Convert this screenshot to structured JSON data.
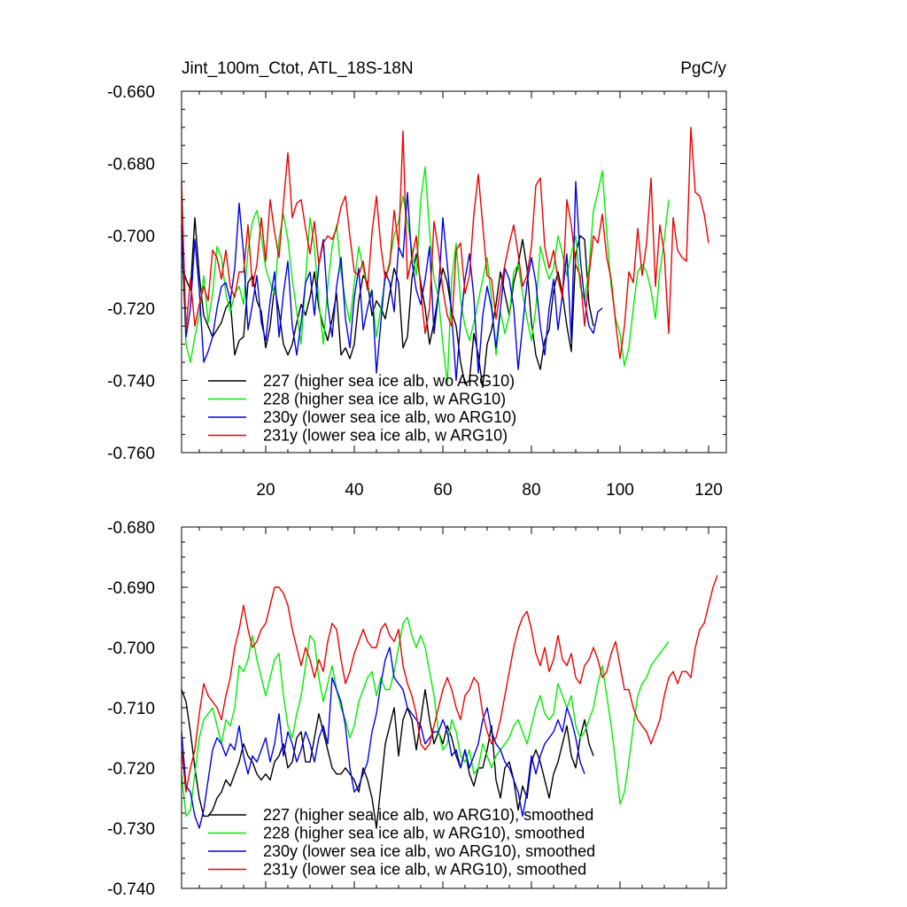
{
  "title": "Jint_100m_Ctot, ATL_18S-18N",
  "units": "PgC/y",
  "colors": {
    "227": "#000000",
    "228": "#00ee00",
    "230y": "#0000ee",
    "231y": "#ee0000"
  },
  "chart_data": [
    {
      "type": "line",
      "panel": "top",
      "xlim": [
        1,
        124
      ],
      "ylim": [
        -0.76,
        -0.66
      ],
      "x_ticks": [
        20,
        40,
        60,
        80,
        100,
        120
      ],
      "x_tick_labels": [
        "20",
        "40",
        "60",
        "80",
        "100",
        "120"
      ],
      "y_ticks": [
        -0.76,
        -0.74,
        -0.72,
        -0.7,
        -0.68,
        -0.66
      ],
      "y_tick_labels": [
        "-0.760",
        "-0.740",
        "-0.720",
        "-0.700",
        "-0.680",
        "-0.660"
      ],
      "legend_position": "bottom-left",
      "series": [
        {
          "name": "227 (higher sea ice alb, wo ARG10)",
          "key": "227",
          "x_start": 1,
          "values": [
            -0.708,
            -0.712,
            -0.715,
            -0.695,
            -0.711,
            -0.722,
            -0.725,
            -0.728,
            -0.726,
            -0.724,
            -0.72,
            -0.718,
            -0.733,
            -0.729,
            -0.728,
            -0.713,
            -0.711,
            -0.718,
            -0.721,
            -0.731,
            -0.725,
            -0.714,
            -0.721,
            -0.73,
            -0.733,
            -0.73,
            -0.724,
            -0.719,
            -0.722,
            -0.717,
            -0.71,
            -0.72,
            -0.725,
            -0.729,
            -0.723,
            -0.716,
            -0.733,
            -0.731,
            -0.734,
            -0.73,
            -0.718,
            -0.711,
            -0.713,
            -0.722,
            -0.718,
            -0.72,
            -0.723,
            -0.716,
            -0.709,
            -0.713,
            -0.731,
            -0.728,
            -0.712,
            -0.705,
            -0.713,
            -0.72,
            -0.73,
            -0.724,
            -0.716,
            -0.709,
            -0.713,
            -0.721,
            -0.725,
            -0.735,
            -0.741,
            -0.74,
            -0.727,
            -0.733,
            -0.742,
            -0.73,
            -0.726,
            -0.719,
            -0.71,
            -0.716,
            -0.722,
            -0.713,
            -0.708,
            -0.701,
            -0.709,
            -0.724,
            -0.733,
            -0.737,
            -0.729,
            -0.726,
            -0.715,
            -0.71,
            -0.716,
            -0.725,
            -0.732,
            -0.705,
            -0.7,
            -0.701,
            -0.719,
            -0.725
          ]
        },
        {
          "name": "228 (higher sea ice alb, w ARG10)",
          "key": "228",
          "x_start": 1,
          "values": [
            -0.7,
            -0.73,
            -0.735,
            -0.728,
            -0.722,
            -0.711,
            -0.724,
            -0.716,
            -0.703,
            -0.706,
            -0.716,
            -0.721,
            -0.716,
            -0.714,
            -0.719,
            -0.704,
            -0.696,
            -0.693,
            -0.7,
            -0.709,
            -0.713,
            -0.716,
            -0.701,
            -0.694,
            -0.701,
            -0.712,
            -0.721,
            -0.73,
            -0.712,
            -0.695,
            -0.703,
            -0.718,
            -0.73,
            -0.714,
            -0.703,
            -0.697,
            -0.71,
            -0.718,
            -0.724,
            -0.713,
            -0.703,
            -0.709,
            -0.715,
            -0.716,
            -0.728,
            -0.72,
            -0.712,
            -0.707,
            -0.7,
            -0.696,
            -0.689,
            -0.696,
            -0.704,
            -0.711,
            -0.69,
            -0.681,
            -0.699,
            -0.712,
            -0.717,
            -0.73,
            -0.741,
            -0.712,
            -0.702,
            -0.718,
            -0.725,
            -0.729,
            -0.724,
            -0.718,
            -0.712,
            -0.706,
            -0.718,
            -0.733,
            -0.721,
            -0.727,
            -0.722,
            -0.71,
            -0.708,
            -0.716,
            -0.723,
            -0.729,
            -0.72,
            -0.703,
            -0.708,
            -0.712,
            -0.709,
            -0.7,
            -0.705,
            -0.711,
            -0.705,
            -0.7,
            -0.714,
            -0.718,
            -0.709,
            -0.693,
            -0.688,
            -0.682,
            -0.699,
            -0.714,
            -0.723,
            -0.727,
            -0.736,
            -0.731,
            -0.72,
            -0.71,
            -0.708,
            -0.71,
            -0.715,
            -0.723,
            -0.71,
            -0.701,
            -0.69
          ]
        },
        {
          "name": "230y (lower sea ice alb, wo ARG10)",
          "key": "230y",
          "x_start": 1,
          "values": [
            -0.697,
            -0.728,
            -0.72,
            -0.701,
            -0.715,
            -0.735,
            -0.732,
            -0.728,
            -0.72,
            -0.714,
            -0.713,
            -0.718,
            -0.709,
            -0.691,
            -0.705,
            -0.726,
            -0.719,
            -0.711,
            -0.724,
            -0.729,
            -0.718,
            -0.71,
            -0.728,
            -0.716,
            -0.707,
            -0.725,
            -0.733,
            -0.724,
            -0.713,
            -0.71,
            -0.722,
            -0.708,
            -0.701,
            -0.719,
            -0.728,
            -0.714,
            -0.706,
            -0.723,
            -0.731,
            -0.717,
            -0.709,
            -0.726,
            -0.72,
            -0.715,
            -0.738,
            -0.724,
            -0.71,
            -0.713,
            -0.721,
            -0.703,
            -0.706,
            -0.688,
            -0.707,
            -0.715,
            -0.719,
            -0.712,
            -0.703,
            -0.727,
            -0.716,
            -0.695,
            -0.708,
            -0.722,
            -0.74,
            -0.724,
            -0.712,
            -0.705,
            -0.717,
            -0.738,
            -0.722,
            -0.714,
            -0.72,
            -0.731,
            -0.72,
            -0.709,
            -0.712,
            -0.72,
            -0.737,
            -0.725,
            -0.713,
            -0.706,
            -0.713,
            -0.725,
            -0.733,
            -0.72,
            -0.712,
            -0.726,
            -0.716,
            -0.705,
            -0.729,
            -0.685,
            -0.706,
            -0.718,
            -0.725,
            -0.727,
            -0.721,
            -0.72
          ]
        },
        {
          "name": "231y (lower sea ice alb, w ARG10)",
          "key": "231y",
          "x_start": 1,
          "values": [
            -0.685,
            -0.726,
            -0.712,
            -0.725,
            -0.719,
            -0.714,
            -0.718,
            -0.704,
            -0.706,
            -0.712,
            -0.704,
            -0.714,
            -0.717,
            -0.71,
            -0.71,
            -0.697,
            -0.714,
            -0.708,
            -0.695,
            -0.707,
            -0.69,
            -0.699,
            -0.706,
            -0.691,
            -0.677,
            -0.695,
            -0.691,
            -0.69,
            -0.698,
            -0.705,
            -0.696,
            -0.708,
            -0.702,
            -0.7,
            -0.701,
            -0.698,
            -0.692,
            -0.689,
            -0.7,
            -0.71,
            -0.711,
            -0.707,
            -0.715,
            -0.699,
            -0.689,
            -0.703,
            -0.712,
            -0.708,
            -0.693,
            -0.703,
            -0.671,
            -0.712,
            -0.706,
            -0.7,
            -0.715,
            -0.727,
            -0.72,
            -0.696,
            -0.704,
            -0.715,
            -0.722,
            -0.725,
            -0.704,
            -0.702,
            -0.716,
            -0.711,
            -0.694,
            -0.683,
            -0.697,
            -0.711,
            -0.712,
            -0.723,
            -0.715,
            -0.708,
            -0.702,
            -0.697,
            -0.705,
            -0.714,
            -0.711,
            -0.703,
            -0.686,
            -0.684,
            -0.703,
            -0.709,
            -0.704,
            -0.712,
            -0.717,
            -0.69,
            -0.697,
            -0.708,
            -0.711,
            -0.725,
            -0.711,
            -0.7,
            -0.702,
            -0.694,
            -0.706,
            -0.712,
            -0.724,
            -0.734,
            -0.725,
            -0.71,
            -0.713,
            -0.698,
            -0.711,
            -0.702,
            -0.684,
            -0.714,
            -0.697,
            -0.705,
            -0.727,
            -0.695,
            -0.704,
            -0.706,
            -0.707,
            -0.67,
            -0.688,
            -0.689,
            -0.694,
            -0.702
          ]
        }
      ]
    },
    {
      "type": "line",
      "panel": "bottom",
      "xlim": [
        1,
        124
      ],
      "ylim": [
        -0.74,
        -0.68
      ],
      "x_ticks": [
        20,
        40,
        60,
        80,
        100,
        120
      ],
      "y_ticks": [
        -0.74,
        -0.73,
        -0.72,
        -0.71,
        -0.7,
        -0.69,
        -0.68
      ],
      "y_tick_labels": [
        "-0.740",
        "-0.730",
        "-0.720",
        "-0.710",
        "-0.700",
        "-0.690",
        "-0.680"
      ],
      "legend_position": "bottom-left",
      "series": [
        {
          "name": "227 (higher sea ice alb, wo ARG10), smoothed",
          "key": "227",
          "x_start": 1,
          "values": [
            -0.707,
            -0.709,
            -0.714,
            -0.72,
            -0.725,
            -0.728,
            -0.728,
            -0.727,
            -0.725,
            -0.724,
            -0.722,
            -0.723,
            -0.721,
            -0.719,
            -0.716,
            -0.718,
            -0.719,
            -0.721,
            -0.722,
            -0.721,
            -0.722,
            -0.719,
            -0.718,
            -0.716,
            -0.72,
            -0.719,
            -0.715,
            -0.714,
            -0.719,
            -0.719,
            -0.715,
            -0.711,
            -0.714,
            -0.717,
            -0.72,
            -0.721,
            -0.721,
            -0.72,
            -0.721,
            -0.722,
            -0.724,
            -0.72,
            -0.722,
            -0.725,
            -0.73,
            -0.723,
            -0.716,
            -0.713,
            -0.71,
            -0.718,
            -0.712,
            -0.71,
            -0.712,
            -0.717,
            -0.712,
            -0.707,
            -0.712,
            -0.716,
            -0.714,
            -0.716,
            -0.713,
            -0.715,
            -0.718,
            -0.72,
            -0.717,
            -0.721,
            -0.723,
            -0.72,
            -0.72,
            -0.717,
            -0.713,
            -0.722,
            -0.725,
            -0.72,
            -0.719,
            -0.722,
            -0.727,
            -0.723,
            -0.725,
            -0.719,
            -0.717,
            -0.719,
            -0.722,
            -0.725,
            -0.721,
            -0.719,
            -0.716,
            -0.713,
            -0.718,
            -0.72,
            -0.715,
            -0.712,
            -0.716,
            -0.718
          ]
        },
        {
          "name": "228 (higher sea ice alb, w ARG10), smoothed",
          "key": "228",
          "x_start": 1,
          "values": [
            -0.721,
            -0.728,
            -0.727,
            -0.721,
            -0.715,
            -0.712,
            -0.711,
            -0.71,
            -0.713,
            -0.716,
            -0.712,
            -0.713,
            -0.71,
            -0.703,
            -0.704,
            -0.702,
            -0.698,
            -0.702,
            -0.705,
            -0.708,
            -0.705,
            -0.702,
            -0.701,
            -0.708,
            -0.713,
            -0.715,
            -0.711,
            -0.708,
            -0.703,
            -0.698,
            -0.699,
            -0.705,
            -0.709,
            -0.706,
            -0.703,
            -0.707,
            -0.71,
            -0.712,
            -0.715,
            -0.713,
            -0.709,
            -0.707,
            -0.705,
            -0.704,
            -0.708,
            -0.705,
            -0.707,
            -0.707,
            -0.704,
            -0.7,
            -0.696,
            -0.695,
            -0.698,
            -0.7,
            -0.698,
            -0.7,
            -0.704,
            -0.708,
            -0.714,
            -0.717,
            -0.716,
            -0.712,
            -0.714,
            -0.718,
            -0.719,
            -0.717,
            -0.721,
            -0.72,
            -0.716,
            -0.718,
            -0.72,
            -0.718,
            -0.717,
            -0.716,
            -0.715,
            -0.713,
            -0.712,
            -0.714,
            -0.716,
            -0.713,
            -0.71,
            -0.708,
            -0.711,
            -0.712,
            -0.711,
            -0.706,
            -0.708,
            -0.71,
            -0.708,
            -0.713,
            -0.715,
            -0.714,
            -0.712,
            -0.71,
            -0.706,
            -0.703,
            -0.708,
            -0.713,
            -0.719,
            -0.726,
            -0.724,
            -0.719,
            -0.713,
            -0.708,
            -0.706,
            -0.705,
            -0.703,
            -0.702,
            -0.701,
            -0.7,
            -0.699
          ]
        },
        {
          "name": "230y (lower sea ice alb, wo ARG10), smoothed",
          "key": "230y",
          "x_start": 1,
          "values": [
            -0.714,
            -0.723,
            -0.724,
            -0.728,
            -0.73,
            -0.727,
            -0.722,
            -0.717,
            -0.715,
            -0.716,
            -0.718,
            -0.716,
            -0.717,
            -0.713,
            -0.718,
            -0.721,
            -0.718,
            -0.719,
            -0.717,
            -0.715,
            -0.719,
            -0.716,
            -0.711,
            -0.718,
            -0.714,
            -0.716,
            -0.719,
            -0.717,
            -0.714,
            -0.716,
            -0.719,
            -0.715,
            -0.713,
            -0.716,
            -0.705,
            -0.707,
            -0.709,
            -0.713,
            -0.72,
            -0.724,
            -0.723,
            -0.721,
            -0.719,
            -0.714,
            -0.711,
            -0.706,
            -0.702,
            -0.7,
            -0.705,
            -0.706,
            -0.707,
            -0.71,
            -0.711,
            -0.712,
            -0.713,
            -0.716,
            -0.715,
            -0.714,
            -0.714,
            -0.712,
            -0.714,
            -0.718,
            -0.717,
            -0.72,
            -0.717,
            -0.72,
            -0.718,
            -0.716,
            -0.712,
            -0.71,
            -0.714,
            -0.716,
            -0.717,
            -0.719,
            -0.72,
            -0.722,
            -0.724,
            -0.728,
            -0.724,
            -0.718,
            -0.721,
            -0.718,
            -0.716,
            -0.715,
            -0.714,
            -0.712,
            -0.714,
            -0.71,
            -0.712,
            -0.715,
            -0.719,
            -0.721
          ]
        },
        {
          "name": "231y (lower sea ice alb, w ARG10), smoothed",
          "key": "231y",
          "x_start": 1,
          "values": [
            -0.717,
            -0.724,
            -0.72,
            -0.717,
            -0.711,
            -0.706,
            -0.708,
            -0.709,
            -0.71,
            -0.712,
            -0.708,
            -0.705,
            -0.7,
            -0.697,
            -0.693,
            -0.697,
            -0.7,
            -0.699,
            -0.697,
            -0.696,
            -0.693,
            -0.69,
            -0.69,
            -0.691,
            -0.693,
            -0.697,
            -0.7,
            -0.703,
            -0.7,
            -0.702,
            -0.705,
            -0.702,
            -0.704,
            -0.699,
            -0.696,
            -0.697,
            -0.702,
            -0.706,
            -0.704,
            -0.701,
            -0.699,
            -0.697,
            -0.699,
            -0.7,
            -0.7,
            -0.697,
            -0.696,
            -0.698,
            -0.699,
            -0.697,
            -0.703,
            -0.706,
            -0.708,
            -0.711,
            -0.716,
            -0.717,
            -0.716,
            -0.713,
            -0.71,
            -0.707,
            -0.705,
            -0.707,
            -0.71,
            -0.712,
            -0.708,
            -0.707,
            -0.705,
            -0.706,
            -0.711,
            -0.714,
            -0.716,
            -0.715,
            -0.712,
            -0.708,
            -0.704,
            -0.7,
            -0.697,
            -0.695,
            -0.694,
            -0.697,
            -0.701,
            -0.703,
            -0.7,
            -0.704,
            -0.702,
            -0.698,
            -0.702,
            -0.703,
            -0.701,
            -0.705,
            -0.706,
            -0.703,
            -0.702,
            -0.7,
            -0.702,
            -0.705,
            -0.704,
            -0.701,
            -0.699,
            -0.703,
            -0.707,
            -0.707,
            -0.71,
            -0.712,
            -0.713,
            -0.714,
            -0.716,
            -0.714,
            -0.712,
            -0.708,
            -0.705,
            -0.704,
            -0.706,
            -0.704,
            -0.704,
            -0.705,
            -0.7,
            -0.697,
            -0.696,
            -0.693,
            -0.69,
            -0.688
          ]
        }
      ]
    }
  ]
}
